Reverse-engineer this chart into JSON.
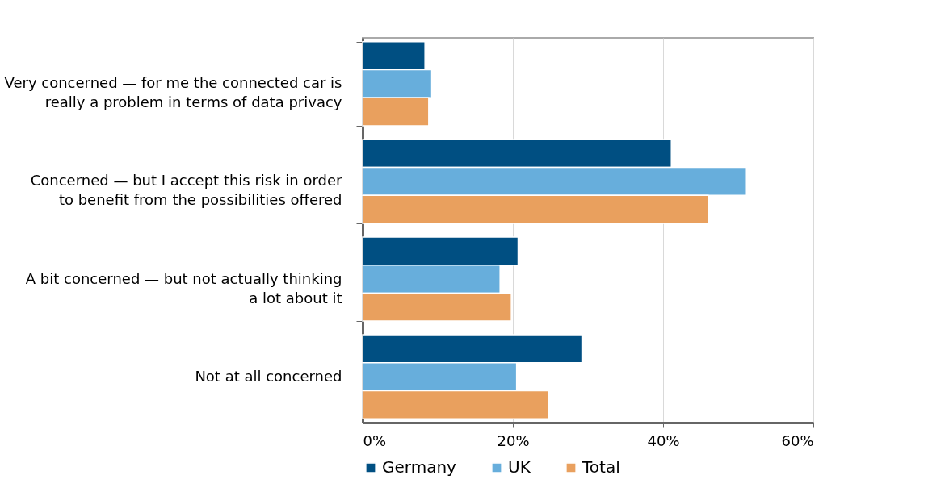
{
  "chart_data": {
    "type": "bar",
    "orientation": "horizontal",
    "categories": [
      "Very concerned — for me the connected car is really a problem in terms of data privacy",
      "Concerned — but I accept this risk in order to benefit from the possibilities offered",
      "A bit concerned — but not actually thinking a lot about it",
      "Not at all concerned"
    ],
    "series": [
      {
        "name": "Germany",
        "color": "#004f82",
        "values": [
          8.3,
          41.1,
          20.7,
          29.2
        ]
      },
      {
        "name": "UK",
        "color": "#67aedc",
        "values": [
          9.2,
          51.1,
          18.3,
          20.5
        ]
      },
      {
        "name": "Total",
        "color": "#e9a05e",
        "values": [
          8.8,
          46.0,
          19.8,
          24.8
        ]
      }
    ],
    "xlim": [
      0,
      60
    ],
    "xticks": [
      {
        "value": 0,
        "label": "0%"
      },
      {
        "value": 20,
        "label": "20%"
      },
      {
        "value": 40,
        "label": "40%"
      },
      {
        "value": 60,
        "label": "60%"
      }
    ],
    "grid": "x",
    "legend": "bottom"
  }
}
